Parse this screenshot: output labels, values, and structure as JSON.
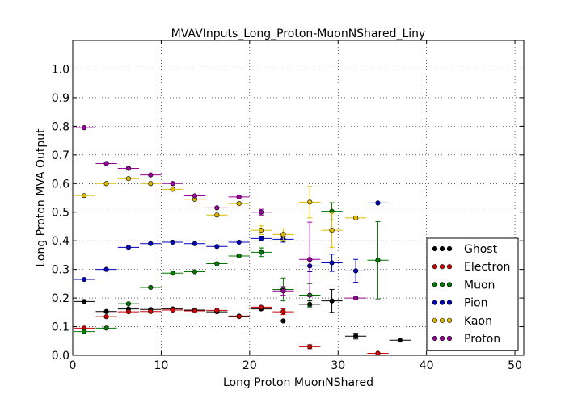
{
  "chart_data": {
    "type": "scatter",
    "title": "MVAVInputs_Long_Proton-MuonNShared_Liny",
    "xlabel": "Long Proton MuonNShared",
    "ylabel": "Long Proton MVA Output",
    "xlim": [
      0,
      51
    ],
    "ylim": [
      0,
      1.1
    ],
    "x_ticks": [
      0,
      10,
      20,
      30,
      40,
      50
    ],
    "y_ticks": [
      0.0,
      0.1,
      0.2,
      0.3,
      0.4,
      0.5,
      0.6,
      0.7,
      0.8,
      0.9,
      1.0
    ],
    "y_tick_labels": [
      "0.0",
      "0.1",
      "0.2",
      "0.3",
      "0.4",
      "0.5",
      "0.6",
      "0.7",
      "0.8",
      "0.9",
      "1.0"
    ],
    "x_tick_labels": [
      "0",
      "10",
      "20",
      "30",
      "40",
      "50"
    ],
    "bin_half_width": 1.2,
    "reference_line_y": 1.0,
    "grid": true,
    "legend_position": "lower-right",
    "series": [
      {
        "name": "Ghost",
        "color": "#000000",
        "points": [
          {
            "x": 1.3,
            "y": 0.188,
            "err": 0
          },
          {
            "x": 3.8,
            "y": 0.153,
            "err": 0
          },
          {
            "x": 6.3,
            "y": 0.162,
            "err": 0
          },
          {
            "x": 8.8,
            "y": 0.16,
            "err": 0
          },
          {
            "x": 11.3,
            "y": 0.162,
            "err": 0
          },
          {
            "x": 13.8,
            "y": 0.158,
            "err": 0
          },
          {
            "x": 16.3,
            "y": 0.152,
            "err": 0
          },
          {
            "x": 18.8,
            "y": 0.137,
            "err": 0
          },
          {
            "x": 21.3,
            "y": 0.162,
            "err": 0
          },
          {
            "x": 23.8,
            "y": 0.12,
            "err": 0
          },
          {
            "x": 26.8,
            "y": 0.178,
            "err": 0.012
          },
          {
            "x": 29.3,
            "y": 0.19,
            "err": 0.04
          },
          {
            "x": 32.0,
            "y": 0.067,
            "err": 0.01
          },
          {
            "x": 37.0,
            "y": 0.053,
            "err": 0
          }
        ]
      },
      {
        "name": "Electron",
        "color": "#cc0000",
        "points": [
          {
            "x": 1.3,
            "y": 0.095,
            "err": 0
          },
          {
            "x": 3.8,
            "y": 0.135,
            "err": 0
          },
          {
            "x": 6.3,
            "y": 0.152,
            "err": 0
          },
          {
            "x": 8.8,
            "y": 0.153,
            "err": 0
          },
          {
            "x": 11.3,
            "y": 0.158,
            "err": 0
          },
          {
            "x": 13.8,
            "y": 0.155,
            "err": 0
          },
          {
            "x": 16.3,
            "y": 0.157,
            "err": 0
          },
          {
            "x": 18.8,
            "y": 0.135,
            "err": 0
          },
          {
            "x": 21.3,
            "y": 0.168,
            "err": 0
          },
          {
            "x": 23.8,
            "y": 0.152,
            "err": 0.01
          },
          {
            "x": 26.8,
            "y": 0.03,
            "err": 0.007
          },
          {
            "x": 34.5,
            "y": 0.007,
            "err": 0
          }
        ]
      },
      {
        "name": "Muon",
        "color": "#007700",
        "points": [
          {
            "x": 1.3,
            "y": 0.083,
            "err": 0
          },
          {
            "x": 3.8,
            "y": 0.095,
            "err": 0
          },
          {
            "x": 6.3,
            "y": 0.18,
            "err": 0
          },
          {
            "x": 8.8,
            "y": 0.237,
            "err": 0
          },
          {
            "x": 11.3,
            "y": 0.287,
            "err": 0
          },
          {
            "x": 13.8,
            "y": 0.292,
            "err": 0
          },
          {
            "x": 16.3,
            "y": 0.32,
            "err": 0
          },
          {
            "x": 18.8,
            "y": 0.347,
            "err": 0
          },
          {
            "x": 21.3,
            "y": 0.36,
            "err": 0.015
          },
          {
            "x": 23.8,
            "y": 0.23,
            "err": 0.04
          },
          {
            "x": 26.8,
            "y": 0.21,
            "err": 0.04
          },
          {
            "x": 29.3,
            "y": 0.503,
            "err": 0.03
          },
          {
            "x": 34.5,
            "y": 0.332,
            "err": 0.135
          }
        ]
      },
      {
        "name": "Pion",
        "color": "#0000bb",
        "points": [
          {
            "x": 1.3,
            "y": 0.265,
            "err": 0
          },
          {
            "x": 3.8,
            "y": 0.3,
            "err": 0
          },
          {
            "x": 6.3,
            "y": 0.377,
            "err": 0
          },
          {
            "x": 8.8,
            "y": 0.39,
            "err": 0
          },
          {
            "x": 11.3,
            "y": 0.395,
            "err": 0
          },
          {
            "x": 13.8,
            "y": 0.39,
            "err": 0
          },
          {
            "x": 16.3,
            "y": 0.38,
            "err": 0
          },
          {
            "x": 18.8,
            "y": 0.395,
            "err": 0
          },
          {
            "x": 21.3,
            "y": 0.408,
            "err": 0.008
          },
          {
            "x": 23.8,
            "y": 0.405,
            "err": 0.01
          },
          {
            "x": 26.8,
            "y": 0.312,
            "err": 0.02
          },
          {
            "x": 29.3,
            "y": 0.323,
            "err": 0.03
          },
          {
            "x": 32.0,
            "y": 0.295,
            "err": 0.04
          },
          {
            "x": 34.5,
            "y": 0.532,
            "err": 0
          }
        ]
      },
      {
        "name": "Kaon",
        "color": "#ddbb00",
        "points": [
          {
            "x": 1.3,
            "y": 0.558,
            "err": 0
          },
          {
            "x": 3.8,
            "y": 0.6,
            "err": 0
          },
          {
            "x": 6.3,
            "y": 0.617,
            "err": 0
          },
          {
            "x": 8.8,
            "y": 0.6,
            "err": 0
          },
          {
            "x": 11.3,
            "y": 0.58,
            "err": 0
          },
          {
            "x": 13.8,
            "y": 0.545,
            "err": 0
          },
          {
            "x": 16.3,
            "y": 0.49,
            "err": 0
          },
          {
            "x": 18.8,
            "y": 0.53,
            "err": 0
          },
          {
            "x": 21.3,
            "y": 0.437,
            "err": 0.015
          },
          {
            "x": 23.8,
            "y": 0.422,
            "err": 0.02
          },
          {
            "x": 26.8,
            "y": 0.535,
            "err": 0.055
          },
          {
            "x": 29.3,
            "y": 0.437,
            "err": 0.06
          },
          {
            "x": 32.0,
            "y": 0.48,
            "err": 0
          }
        ]
      },
      {
        "name": "Proton",
        "color": "#990099",
        "points": [
          {
            "x": 1.3,
            "y": 0.795,
            "err": 0
          },
          {
            "x": 3.8,
            "y": 0.67,
            "err": 0
          },
          {
            "x": 6.3,
            "y": 0.653,
            "err": 0
          },
          {
            "x": 8.8,
            "y": 0.63,
            "err": 0
          },
          {
            "x": 11.3,
            "y": 0.6,
            "err": 0
          },
          {
            "x": 13.8,
            "y": 0.557,
            "err": 0
          },
          {
            "x": 16.3,
            "y": 0.515,
            "err": 0
          },
          {
            "x": 18.8,
            "y": 0.553,
            "err": 0
          },
          {
            "x": 21.3,
            "y": 0.5,
            "err": 0.01
          },
          {
            "x": 23.8,
            "y": 0.225,
            "err": 0.015
          },
          {
            "x": 26.8,
            "y": 0.335,
            "err": 0.13
          },
          {
            "x": 32.0,
            "y": 0.2,
            "err": 0
          }
        ]
      }
    ]
  }
}
